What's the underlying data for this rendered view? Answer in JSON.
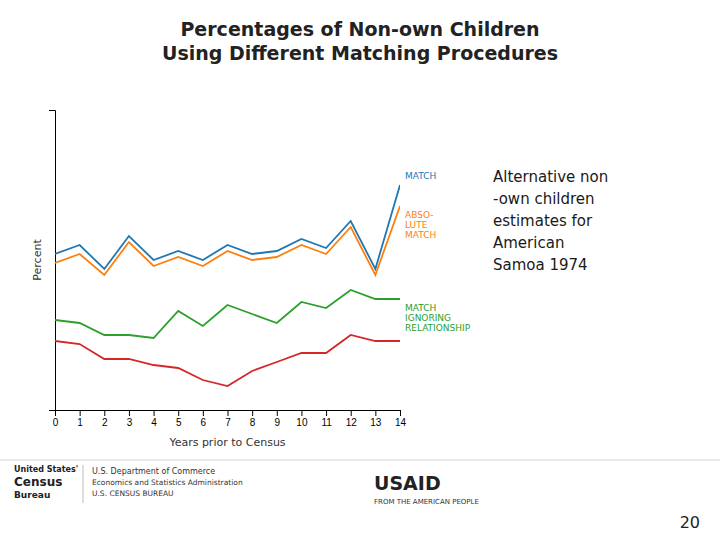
{
  "chart_data": {
    "type": "line",
    "title": "Percentages of Non-own Children\nUsing Different Matching Procedures",
    "x_label": "Years prior to Census",
    "y_label": "Percent",
    "x": [
      0,
      1,
      2,
      3,
      4,
      5,
      6,
      7,
      8,
      9,
      10,
      11,
      12,
      13,
      14
    ],
    "series": [
      {
        "name": "MATCH",
        "values": [
          52,
          55,
          47,
          58,
          50,
          53,
          50,
          55,
          52,
          53,
          57,
          54,
          63,
          47,
          75
        ]
      },
      {
        "name": "ABSO-\nLUTE\nMATCH",
        "values": [
          49,
          52,
          45,
          56,
          48,
          51,
          48,
          53,
          50,
          51,
          55,
          52,
          61,
          45,
          68
        ]
      },
      {
        "name": "MATCH\nIGNORING\nRELATIONSHIP",
        "values": [
          30,
          29,
          25,
          25,
          24,
          33,
          28,
          35,
          32,
          29,
          36,
          34,
          40,
          37,
          37
        ]
      },
      {
        "values": [
          23,
          22,
          17,
          17,
          15,
          14,
          10,
          8,
          13,
          16,
          19,
          19,
          25,
          23,
          23
        ]
      }
    ],
    "xlim": [
      0,
      14
    ],
    "xticks": [
      0,
      1,
      2,
      3,
      4,
      5,
      6,
      7,
      8,
      9,
      10,
      11,
      12,
      13,
      14
    ],
    "ylim": [
      0,
      100
    ],
    "tick_labels": "x",
    "grid": false,
    "annotations": [
      "Alternative non\n-own children\nestimates for\nAmerican\nSamoa 1974",
      "20",
      "United States'",
      "Census",
      "Bureau",
      "U.S. Department of Commerce",
      "Economics and Statistics Administration",
      "U.S. CENSUS BUREAU",
      "USAID",
      "FROM THE AMERICAN PEOPLE"
    ]
  }
}
